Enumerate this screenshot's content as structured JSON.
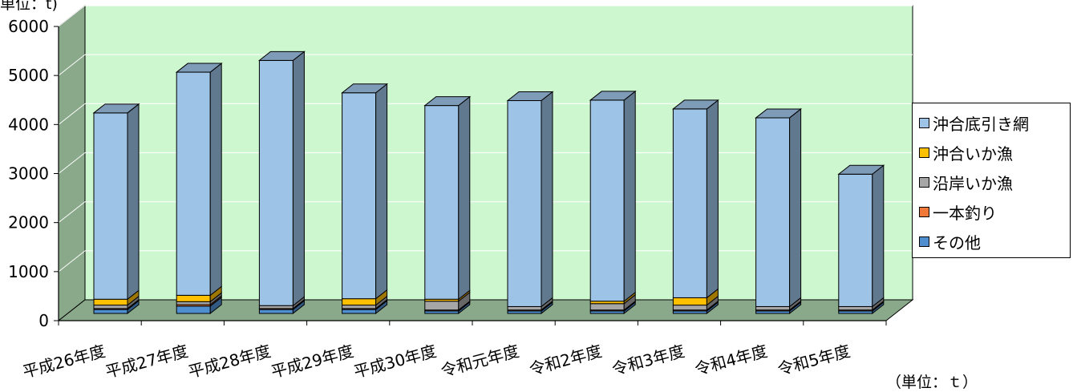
{
  "unit_top": "単位：t)",
  "unit_bottom": "（単位：ｔ）",
  "chart_data": {
    "type": "bar",
    "stacked": true,
    "style": "3d-stacked-column",
    "categories": [
      "平成26年度",
      "平成27年度",
      "平成28年度",
      "平成29年度",
      "平成30年度",
      "令和元年度",
      "令和2年度",
      "令和3年度",
      "令和4年度",
      "令和5年度"
    ],
    "series": [
      {
        "name": "その他",
        "color": "#4f8fd0",
        "values": [
          80,
          150,
          80,
          80,
          50,
          50,
          50,
          50,
          50,
          50
        ]
      },
      {
        "name": "一本釣り",
        "color": "#f07838",
        "values": [
          20,
          30,
          20,
          20,
          20,
          20,
          20,
          20,
          20,
          20
        ]
      },
      {
        "name": "沿岸いか漁",
        "color": "#a6a6a6",
        "values": [
          70,
          60,
          60,
          70,
          180,
          70,
          130,
          100,
          70,
          70
        ]
      },
      {
        "name": "沖合いか漁",
        "color": "#ffc000",
        "values": [
          120,
          130,
          0,
          130,
          40,
          0,
          50,
          150,
          0,
          0
        ]
      },
      {
        "name": "沖合底引き網",
        "color": "#9dc3e6",
        "values": [
          3800,
          4550,
          5000,
          4200,
          3950,
          4200,
          4100,
          3850,
          3850,
          2700
        ]
      }
    ],
    "ylim": [
      0,
      6000
    ],
    "yticks": [
      0,
      1000,
      2000,
      3000,
      4000,
      5000,
      6000
    ],
    "grid": true,
    "legend_position": "right"
  }
}
